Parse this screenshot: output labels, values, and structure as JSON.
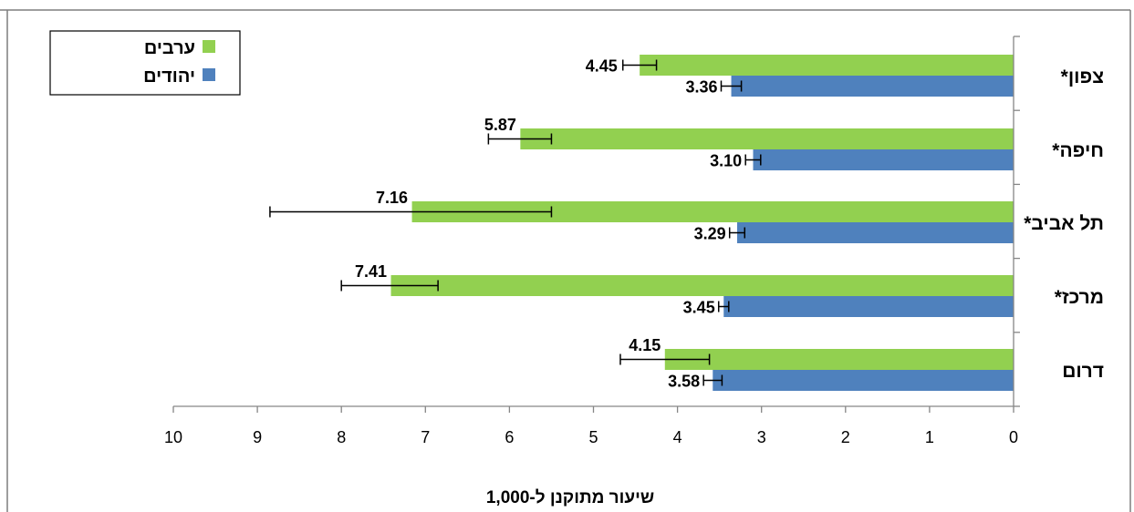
{
  "chart_data": {
    "type": "bar",
    "orientation": "horizontal",
    "x_axis_reversed": true,
    "xlabel": "שיעור מתוקנן ל-1,000",
    "xlim": [
      0,
      10
    ],
    "x_ticks": [
      "0",
      "1",
      "2",
      "3",
      "4",
      "5",
      "6",
      "7",
      "8",
      "9",
      "10"
    ],
    "categories": [
      "*צפון",
      "*חיפה",
      "*תל אביב",
      "*מרכז",
      "דרום"
    ],
    "series": [
      {
        "name": "ערבים",
        "color": "#92D050",
        "values": [
          4.45,
          5.87,
          7.16,
          7.41,
          4.15
        ],
        "labels": [
          "4.45",
          "5.87",
          "7.16",
          "7.41",
          "4.15"
        ],
        "error_low": [
          4.25,
          5.5,
          5.5,
          6.85,
          3.62
        ],
        "error_high": [
          4.65,
          6.25,
          8.85,
          8.0,
          4.68
        ]
      },
      {
        "name": "יהודים",
        "color": "#4F81BD",
        "values": [
          3.36,
          3.1,
          3.29,
          3.45,
          3.58
        ],
        "labels": [
          "3.36",
          "3.10",
          "3.29",
          "3.45",
          "3.58"
        ],
        "error_low": [
          3.24,
          3.01,
          3.2,
          3.39,
          3.47
        ],
        "error_high": [
          3.48,
          3.19,
          3.38,
          3.51,
          3.69
        ]
      }
    ],
    "legend_position": "top-left",
    "grid": false
  }
}
